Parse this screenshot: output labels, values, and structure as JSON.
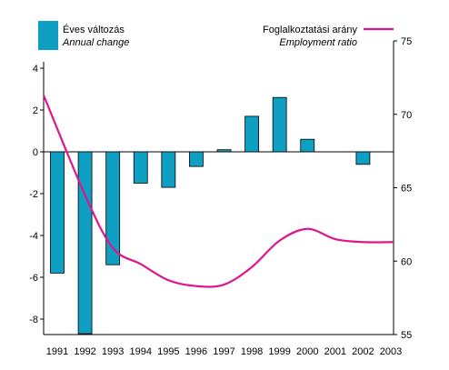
{
  "chart_data": {
    "type": "bar",
    "categories": [
      "1991",
      "1992",
      "1993",
      "1994",
      "1995",
      "1996",
      "1997",
      "1998",
      "1999",
      "2000",
      "2001",
      "2002",
      "2003"
    ],
    "series": [
      {
        "name": "Éves változás",
        "name_en": "Annual change",
        "type": "bar",
        "axis": "left",
        "color": "#0f9fc2",
        "values": [
          -5.8,
          -8.7,
          -5.4,
          -1.5,
          -1.7,
          -0.7,
          0.1,
          1.7,
          2.6,
          0.6,
          0,
          -0.6,
          0
        ]
      },
      {
        "name": "Foglalkoztatási arány",
        "name_en": "Employment ratio",
        "type": "line",
        "axis": "right",
        "color": "#e0148c",
        "values": [
          71.3,
          64.5,
          60.9,
          59.8,
          58.7,
          58.3,
          58.4,
          59.6,
          61.4,
          62.2,
          61.5,
          61.3,
          61.3
        ]
      }
    ],
    "y_left": {
      "ylim": [
        -9,
        4
      ],
      "ticks": [
        -8,
        -6,
        -4,
        -2,
        0,
        2,
        4
      ]
    },
    "y_right": {
      "ylim": [
        55,
        75
      ],
      "ticks": [
        55,
        60,
        65,
        70,
        75
      ]
    },
    "legend": {
      "bar_label": "Éves változás",
      "bar_label_en": "Annual change",
      "line_label": "Foglalkoztatási arány",
      "line_label_en": "Employment ratio"
    },
    "grid": false
  }
}
